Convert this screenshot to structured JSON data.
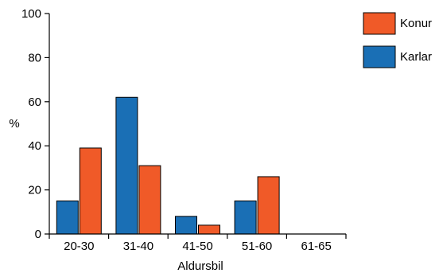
{
  "chart_data": {
    "type": "bar",
    "categories": [
      "20-30",
      "31-40",
      "41-50",
      "51-60",
      "61-65"
    ],
    "series": [
      {
        "name": "Karlar",
        "values": [
          15,
          62,
          8,
          15,
          0
        ],
        "color": "#1a6fb5"
      },
      {
        "name": "Konur",
        "values": [
          39,
          31,
          4,
          26,
          0
        ],
        "color": "#f05a28"
      }
    ],
    "legend_order": [
      "Konur",
      "Karlar"
    ],
    "title": "",
    "xlabel": "Aldursbil",
    "ylabel": "%",
    "ylim": [
      0,
      100
    ],
    "yticks": [
      0,
      20,
      40,
      60,
      80,
      100
    ],
    "grid": false,
    "legend_position": "top-right"
  }
}
